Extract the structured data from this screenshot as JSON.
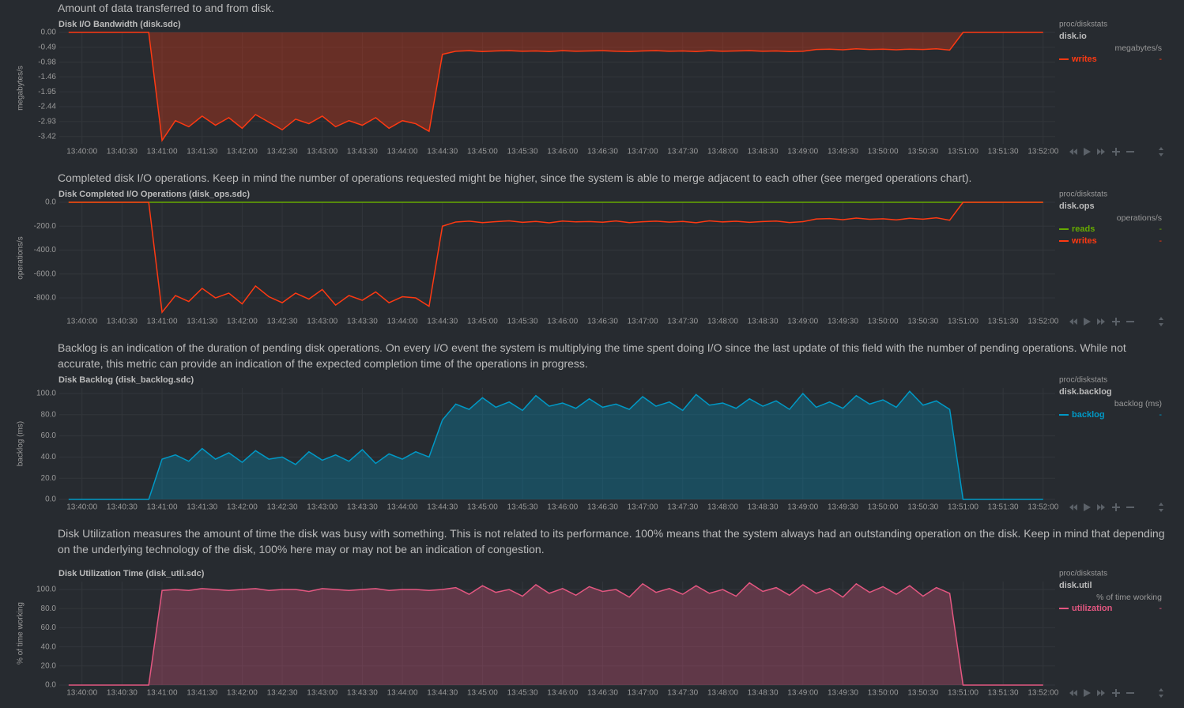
{
  "chart_data": [
    {
      "type": "area",
      "description": "Amount of data transferred to and from disk.",
      "title": "Disk I/O Bandwidth (disk.sdc)",
      "source": "proc/diskstats",
      "context": "disk.io",
      "units": "megabytes/s",
      "ylabel": "megabytes/s",
      "grid": true,
      "x": [
        "13:39:50",
        "13:40:00",
        "13:40:10",
        "13:40:20",
        "13:40:30",
        "13:40:40",
        "13:40:50",
        "13:41:00",
        "13:41:10",
        "13:41:20",
        "13:41:30",
        "13:41:40",
        "13:41:50",
        "13:42:00",
        "13:42:10",
        "13:42:20",
        "13:42:30",
        "13:42:40",
        "13:42:50",
        "13:43:00",
        "13:43:10",
        "13:43:20",
        "13:43:30",
        "13:43:40",
        "13:43:50",
        "13:44:00",
        "13:44:10",
        "13:44:20",
        "13:44:30",
        "13:44:40",
        "13:44:50",
        "13:45:00",
        "13:45:10",
        "13:45:20",
        "13:45:30",
        "13:45:40",
        "13:45:50",
        "13:46:00",
        "13:46:10",
        "13:46:20",
        "13:46:30",
        "13:46:40",
        "13:46:50",
        "13:47:00",
        "13:47:10",
        "13:47:20",
        "13:47:30",
        "13:47:40",
        "13:47:50",
        "13:48:00",
        "13:48:10",
        "13:48:20",
        "13:48:30",
        "13:48:40",
        "13:48:50",
        "13:49:00",
        "13:49:10",
        "13:49:20",
        "13:49:30",
        "13:49:40",
        "13:49:50",
        "13:50:00",
        "13:50:10",
        "13:50:20",
        "13:50:30",
        "13:50:40",
        "13:50:50",
        "13:51:00",
        "13:51:10",
        "13:51:20",
        "13:51:30",
        "13:51:40",
        "13:51:50",
        "13:52:00"
      ],
      "xlim": [
        "13:39:43",
        "13:52:09"
      ],
      "xticks": [
        "13:40:00",
        "13:40:30",
        "13:41:00",
        "13:41:30",
        "13:42:00",
        "13:42:30",
        "13:43:00",
        "13:43:30",
        "13:44:00",
        "13:44:30",
        "13:45:00",
        "13:45:30",
        "13:46:00",
        "13:46:30",
        "13:47:00",
        "13:47:30",
        "13:48:00",
        "13:48:30",
        "13:49:00",
        "13:49:30",
        "13:50:00",
        "13:50:30",
        "13:51:00",
        "13:51:30",
        "13:52:00"
      ],
      "ylim": [
        -3.66,
        0
      ],
      "yticks": [
        {
          "value": 0,
          "label": "0.00"
        },
        -0.49,
        -0.98,
        -1.46,
        -1.95,
        -2.44,
        -2.93,
        -3.42
      ],
      "series": [
        {
          "name": "writes",
          "color": "#fe3912",
          "legend_value": "-",
          "values": [
            0,
            0,
            0,
            0,
            0,
            0,
            0,
            -3.55,
            -2.9,
            -3.1,
            -2.75,
            -3.05,
            -2.8,
            -3.15,
            -2.7,
            -2.95,
            -3.2,
            -2.85,
            -3.0,
            -2.75,
            -3.1,
            -2.9,
            -3.05,
            -2.8,
            -3.15,
            -2.9,
            -3.0,
            -3.25,
            -0.72,
            -0.62,
            -0.6,
            -0.63,
            -0.61,
            -0.6,
            -0.62,
            -0.61,
            -0.63,
            -0.6,
            -0.62,
            -0.61,
            -0.6,
            -0.62,
            -0.63,
            -0.61,
            -0.6,
            -0.62,
            -0.61,
            -0.63,
            -0.6,
            -0.62,
            -0.61,
            -0.6,
            -0.62,
            -0.61,
            -0.63,
            -0.62,
            -0.56,
            -0.55,
            -0.57,
            -0.54,
            -0.56,
            -0.55,
            -0.57,
            -0.55,
            -0.56,
            -0.54,
            -0.58,
            0,
            0,
            0,
            0,
            0,
            0,
            0
          ]
        }
      ]
    },
    {
      "type": "line",
      "description": "Completed disk I/O operations. Keep in mind the number of operations requested might be higher, since the system is able to merge adjacent to each other (see merged operations chart).",
      "title": "Disk Completed I/O Operations (disk_ops.sdc)",
      "source": "proc/diskstats",
      "context": "disk.ops",
      "units": "operations/s",
      "ylabel": "operations/s",
      "grid": true,
      "x": [
        "13:39:50",
        "13:40:00",
        "13:40:10",
        "13:40:20",
        "13:40:30",
        "13:40:40",
        "13:40:50",
        "13:41:00",
        "13:41:10",
        "13:41:20",
        "13:41:30",
        "13:41:40",
        "13:41:50",
        "13:42:00",
        "13:42:10",
        "13:42:20",
        "13:42:30",
        "13:42:40",
        "13:42:50",
        "13:43:00",
        "13:43:10",
        "13:43:20",
        "13:43:30",
        "13:43:40",
        "13:43:50",
        "13:44:00",
        "13:44:10",
        "13:44:20",
        "13:44:30",
        "13:44:40",
        "13:44:50",
        "13:45:00",
        "13:45:10",
        "13:45:20",
        "13:45:30",
        "13:45:40",
        "13:45:50",
        "13:46:00",
        "13:46:10",
        "13:46:20",
        "13:46:30",
        "13:46:40",
        "13:46:50",
        "13:47:00",
        "13:47:10",
        "13:47:20",
        "13:47:30",
        "13:47:40",
        "13:47:50",
        "13:48:00",
        "13:48:10",
        "13:48:20",
        "13:48:30",
        "13:48:40",
        "13:48:50",
        "13:49:00",
        "13:49:10",
        "13:49:20",
        "13:49:30",
        "13:49:40",
        "13:49:50",
        "13:50:00",
        "13:50:10",
        "13:50:20",
        "13:50:30",
        "13:50:40",
        "13:50:50",
        "13:51:00",
        "13:51:10",
        "13:51:20",
        "13:51:30",
        "13:51:40",
        "13:51:50",
        "13:52:00"
      ],
      "xlim": [
        "13:39:43",
        "13:52:09"
      ],
      "xticks": [
        "13:40:00",
        "13:40:30",
        "13:41:00",
        "13:41:30",
        "13:42:00",
        "13:42:30",
        "13:43:00",
        "13:43:30",
        "13:44:00",
        "13:44:30",
        "13:45:00",
        "13:45:30",
        "13:46:00",
        "13:46:30",
        "13:47:00",
        "13:47:30",
        "13:48:00",
        "13:48:30",
        "13:49:00",
        "13:49:30",
        "13:50:00",
        "13:50:30",
        "13:51:00",
        "13:51:30",
        "13:52:00"
      ],
      "ylim": [
        -932,
        0
      ],
      "yticks": [
        {
          "value": 0,
          "label": "0.0"
        },
        {
          "value": -200,
          "label": "-200.0"
        },
        {
          "value": -400,
          "label": "-400.0"
        },
        {
          "value": -600,
          "label": "-600.0"
        },
        {
          "value": -800,
          "label": "-800.0"
        }
      ],
      "series": [
        {
          "name": "reads",
          "color": "#66aa00",
          "legend_value": "-",
          "values": [
            0,
            0,
            0,
            0,
            0,
            0,
            0,
            0,
            0,
            0,
            0,
            0,
            0,
            0,
            0,
            0,
            0,
            0,
            0,
            0,
            0,
            0,
            0,
            0,
            0,
            0,
            0,
            0,
            0,
            0,
            0,
            0,
            0,
            0,
            0,
            0,
            0,
            0,
            0,
            0,
            0,
            0,
            0,
            0,
            0,
            0,
            0,
            0,
            0,
            0,
            0,
            0,
            0,
            0,
            0,
            0,
            0,
            0,
            0,
            0,
            0,
            0,
            0,
            0,
            0,
            0,
            0,
            0,
            0,
            0,
            0,
            0,
            0,
            0
          ]
        },
        {
          "name": "writes",
          "color": "#fe3912",
          "legend_value": "-",
          "values": [
            0,
            0,
            0,
            0,
            0,
            0,
            0,
            -920,
            -780,
            -830,
            -720,
            -800,
            -760,
            -850,
            -700,
            -790,
            -840,
            -760,
            -810,
            -730,
            -860,
            -780,
            -820,
            -750,
            -840,
            -790,
            -800,
            -870,
            -200,
            -165,
            -158,
            -170,
            -162,
            -155,
            -168,
            -160,
            -172,
            -157,
            -164,
            -161,
            -167,
            -156,
            -170,
            -163,
            -158,
            -166,
            -160,
            -171,
            -155,
            -164,
            -159,
            -168,
            -161,
            -157,
            -169,
            -162,
            -140,
            -136,
            -145,
            -132,
            -142,
            -138,
            -147,
            -134,
            -141,
            -130,
            -150,
            0,
            0,
            0,
            0,
            0,
            0,
            0
          ]
        }
      ]
    },
    {
      "type": "area",
      "description": "Backlog is an indication of the duration of pending disk operations. On every I/O event the system is multiplying the time spent doing I/O since the last update of this field with the number of pending operations. While not accurate, this metric can provide an indication of the expected completion time of the operations in progress.",
      "title": "Disk Backlog (disk_backlog.sdc)",
      "source": "proc/diskstats",
      "context": "disk.backlog",
      "units": "backlog (ms)",
      "ylabel": "backlog (ms)",
      "grid": true,
      "x": [
        "13:39:50",
        "13:40:00",
        "13:40:10",
        "13:40:20",
        "13:40:30",
        "13:40:40",
        "13:40:50",
        "13:41:00",
        "13:41:10",
        "13:41:20",
        "13:41:30",
        "13:41:40",
        "13:41:50",
        "13:42:00",
        "13:42:10",
        "13:42:20",
        "13:42:30",
        "13:42:40",
        "13:42:50",
        "13:43:00",
        "13:43:10",
        "13:43:20",
        "13:43:30",
        "13:43:40",
        "13:43:50",
        "13:44:00",
        "13:44:10",
        "13:44:20",
        "13:44:30",
        "13:44:40",
        "13:44:50",
        "13:45:00",
        "13:45:10",
        "13:45:20",
        "13:45:30",
        "13:45:40",
        "13:45:50",
        "13:46:00",
        "13:46:10",
        "13:46:20",
        "13:46:30",
        "13:46:40",
        "13:46:50",
        "13:47:00",
        "13:47:10",
        "13:47:20",
        "13:47:30",
        "13:47:40",
        "13:47:50",
        "13:48:00",
        "13:48:10",
        "13:48:20",
        "13:48:30",
        "13:48:40",
        "13:48:50",
        "13:49:00",
        "13:49:10",
        "13:49:20",
        "13:49:30",
        "13:49:40",
        "13:49:50",
        "13:50:00",
        "13:50:10",
        "13:50:20",
        "13:50:30",
        "13:50:40",
        "13:50:50",
        "13:51:00",
        "13:51:10",
        "13:51:20",
        "13:51:30",
        "13:51:40",
        "13:51:50",
        "13:52:00"
      ],
      "xlim": [
        "13:39:43",
        "13:52:09"
      ],
      "xticks": [
        "13:40:00",
        "13:40:30",
        "13:41:00",
        "13:41:30",
        "13:42:00",
        "13:42:30",
        "13:43:00",
        "13:43:30",
        "13:44:00",
        "13:44:30",
        "13:45:00",
        "13:45:30",
        "13:46:00",
        "13:46:30",
        "13:47:00",
        "13:47:30",
        "13:48:00",
        "13:48:30",
        "13:49:00",
        "13:49:30",
        "13:50:00",
        "13:50:30",
        "13:51:00",
        "13:51:30",
        "13:52:00"
      ],
      "ylim": [
        0,
        105.2
      ],
      "yticks": [
        {
          "value": 0,
          "label": "0.0"
        },
        {
          "value": 20,
          "label": "20.0"
        },
        {
          "value": 40,
          "label": "40.0"
        },
        {
          "value": 60,
          "label": "60.0"
        },
        {
          "value": 80,
          "label": "80.0"
        },
        {
          "value": 100,
          "label": "100.0"
        }
      ],
      "series": [
        {
          "name": "backlog",
          "color": "#0099c6",
          "legend_value": "-",
          "values": [
            0,
            0,
            0,
            0,
            0,
            0,
            0,
            38,
            42,
            36,
            48,
            38,
            44,
            35,
            46,
            38,
            40,
            33,
            45,
            37,
            42,
            36,
            47,
            34,
            43,
            38,
            45,
            40,
            75,
            90,
            85,
            96,
            87,
            92,
            84,
            98,
            88,
            91,
            86,
            95,
            87,
            90,
            85,
            97,
            88,
            92,
            84,
            99,
            89,
            91,
            86,
            95,
            88,
            93,
            85,
            100,
            87,
            92,
            86,
            98,
            90,
            94,
            87,
            102,
            89,
            93,
            85,
            0,
            0,
            0,
            0,
            0,
            0,
            0
          ]
        }
      ]
    },
    {
      "type": "area",
      "description": "Disk Utilization measures the amount of time the disk was busy with something. This is not related to its performance. 100% means that the system always had an outstanding operation on the disk. Keep in mind that depending on the underlying technology of the disk, 100% here may or may not be an indication of congestion.",
      "title": "Disk Utilization Time (disk_util.sdc)",
      "source": "proc/diskstats",
      "context": "disk.util",
      "units": "% of time working",
      "ylabel": "% of time working",
      "grid": true,
      "x": [
        "13:39:50",
        "13:40:00",
        "13:40:10",
        "13:40:20",
        "13:40:30",
        "13:40:40",
        "13:40:50",
        "13:41:00",
        "13:41:10",
        "13:41:20",
        "13:41:30",
        "13:41:40",
        "13:41:50",
        "13:42:00",
        "13:42:10",
        "13:42:20",
        "13:42:30",
        "13:42:40",
        "13:42:50",
        "13:43:00",
        "13:43:10",
        "13:43:20",
        "13:43:30",
        "13:43:40",
        "13:43:50",
        "13:44:00",
        "13:44:10",
        "13:44:20",
        "13:44:30",
        "13:44:40",
        "13:44:50",
        "13:45:00",
        "13:45:10",
        "13:45:20",
        "13:45:30",
        "13:45:40",
        "13:45:50",
        "13:46:00",
        "13:46:10",
        "13:46:20",
        "13:46:30",
        "13:46:40",
        "13:46:50",
        "13:47:00",
        "13:47:10",
        "13:47:20",
        "13:47:30",
        "13:47:40",
        "13:47:50",
        "13:48:00",
        "13:48:10",
        "13:48:20",
        "13:48:30",
        "13:48:40",
        "13:48:50",
        "13:49:00",
        "13:49:10",
        "13:49:20",
        "13:49:30",
        "13:49:40",
        "13:49:50",
        "13:50:00",
        "13:50:10",
        "13:50:20",
        "13:50:30",
        "13:50:40",
        "13:50:50",
        "13:51:00",
        "13:51:10",
        "13:51:20",
        "13:51:30",
        "13:51:40",
        "13:51:50",
        "13:52:00"
      ],
      "xlim": [
        "13:39:43",
        "13:52:09"
      ],
      "xticks": [
        "13:40:00",
        "13:40:30",
        "13:41:00",
        "13:41:30",
        "13:42:00",
        "13:42:30",
        "13:43:00",
        "13:43:30",
        "13:44:00",
        "13:44:30",
        "13:45:00",
        "13:45:30",
        "13:46:00",
        "13:46:30",
        "13:47:00",
        "13:47:30",
        "13:48:00",
        "13:48:30",
        "13:49:00",
        "13:49:30",
        "13:50:00",
        "13:50:30",
        "13:51:00",
        "13:51:30",
        "13:52:00"
      ],
      "ylim": [
        0,
        108.3
      ],
      "yticks": [
        {
          "value": 0,
          "label": "0.0"
        },
        {
          "value": 20,
          "label": "20.0"
        },
        {
          "value": 40,
          "label": "40.0"
        },
        {
          "value": 60,
          "label": "60.0"
        },
        {
          "value": 80,
          "label": "80.0"
        },
        {
          "value": 100,
          "label": "100.0"
        }
      ],
      "series": [
        {
          "name": "utilization",
          "color": "#e45781",
          "legend_value": "-",
          "values": [
            0,
            0,
            0,
            0,
            0,
            0,
            0,
            99,
            100,
            99,
            101,
            100,
            99,
            100,
            101,
            99,
            100,
            100,
            98,
            101,
            100,
            99,
            100,
            101,
            99,
            100,
            100,
            99,
            100,
            102,
            95,
            104,
            97,
            100,
            93,
            105,
            96,
            101,
            94,
            103,
            98,
            100,
            92,
            106,
            97,
            101,
            95,
            104,
            96,
            100,
            93,
            107,
            98,
            102,
            94,
            105,
            96,
            101,
            92,
            106,
            97,
            103,
            95,
            104,
            93,
            102,
            96,
            0,
            0,
            0,
            0,
            0,
            0,
            0
          ]
        }
      ]
    }
  ]
}
